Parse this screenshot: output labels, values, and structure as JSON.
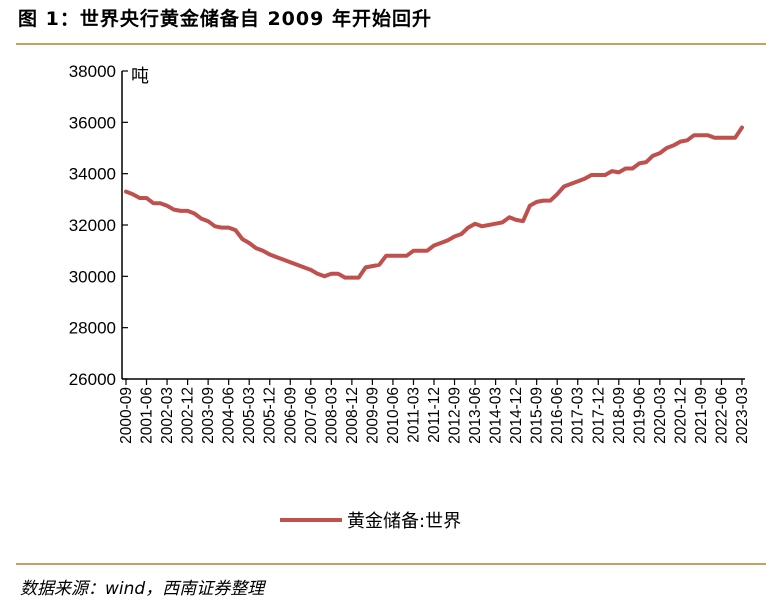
{
  "header": {
    "title": "图 1：世界央行黄金储备自 2009 年开始回升"
  },
  "footer": {
    "source": "数据来源：wind，西南证券整理"
  },
  "chart_data": {
    "type": "line",
    "unit_label": "吨",
    "ylim": [
      26000,
      38000
    ],
    "y_ticks": [
      26000,
      28000,
      30000,
      32000,
      34000,
      36000,
      38000
    ],
    "y_tick_labels": [
      "26000",
      "28000",
      "30000",
      "32000",
      "34000",
      "36000",
      "38000"
    ],
    "x_tick_labels": [
      "2000-09",
      "2001-06",
      "2002-03",
      "2002-12",
      "2003-09",
      "2004-06",
      "2005-03",
      "2005-12",
      "2006-09",
      "2007-06",
      "2008-03",
      "2008-12",
      "2009-09",
      "2010-06",
      "2011-03",
      "2011-12",
      "2012-09",
      "2013-06",
      "2014-03",
      "2014-12",
      "2015-09",
      "2016-06",
      "2017-03",
      "2017-12",
      "2018-09",
      "2019-06",
      "2020-03",
      "2020-12",
      "2021-09",
      "2022-06",
      "2023-03"
    ],
    "legend_position": "bottom",
    "series": [
      {
        "name": "黄金储备:世界",
        "color": "#c0504d",
        "x": [
          "2000-09",
          "2000-12",
          "2001-03",
          "2001-06",
          "2001-09",
          "2001-12",
          "2002-03",
          "2002-06",
          "2002-09",
          "2002-12",
          "2003-03",
          "2003-06",
          "2003-09",
          "2003-12",
          "2004-03",
          "2004-06",
          "2004-09",
          "2004-12",
          "2005-03",
          "2005-06",
          "2005-09",
          "2005-12",
          "2006-03",
          "2006-06",
          "2006-09",
          "2006-12",
          "2007-03",
          "2007-06",
          "2007-09",
          "2007-12",
          "2008-03",
          "2008-06",
          "2008-09",
          "2008-12",
          "2009-03",
          "2009-06",
          "2009-09",
          "2009-12",
          "2010-03",
          "2010-06",
          "2010-09",
          "2010-12",
          "2011-03",
          "2011-06",
          "2011-09",
          "2011-12",
          "2012-03",
          "2012-06",
          "2012-09",
          "2012-12",
          "2013-03",
          "2013-06",
          "2013-09",
          "2013-12",
          "2014-03",
          "2014-06",
          "2014-09",
          "2014-12",
          "2015-03",
          "2015-06",
          "2015-09",
          "2015-12",
          "2016-03",
          "2016-06",
          "2016-09",
          "2016-12",
          "2017-03",
          "2017-06",
          "2017-09",
          "2017-12",
          "2018-03",
          "2018-06",
          "2018-09",
          "2018-12",
          "2019-03",
          "2019-06",
          "2019-09",
          "2019-12",
          "2020-03",
          "2020-06",
          "2020-09",
          "2020-12",
          "2021-03",
          "2021-06",
          "2021-09",
          "2021-12",
          "2022-03",
          "2022-06",
          "2022-09",
          "2022-12",
          "2023-03"
        ],
        "values": [
          33300,
          33200,
          33050,
          33050,
          32850,
          32850,
          32750,
          32600,
          32550,
          32550,
          32450,
          32250,
          32150,
          31950,
          31900,
          31900,
          31800,
          31450,
          31300,
          31100,
          31000,
          30850,
          30750,
          30650,
          30550,
          30450,
          30350,
          30250,
          30100,
          30000,
          30100,
          30100,
          29950,
          29950,
          29950,
          30350,
          30400,
          30450,
          30800,
          30800,
          30800,
          30800,
          31000,
          31000,
          31000,
          31200,
          31300,
          31400,
          31550,
          31650,
          31900,
          32050,
          31950,
          32000,
          32050,
          32100,
          32300,
          32200,
          32150,
          32750,
          32900,
          32950,
          32950,
          33200,
          33500,
          33600,
          33700,
          33800,
          33950,
          33950,
          33950,
          34100,
          34050,
          34200,
          34200,
          34400,
          34450,
          34700,
          34800,
          35000,
          35100,
          35250,
          35300,
          35500,
          35500,
          35500,
          35400,
          35400,
          35400,
          35400,
          35800
        ]
      }
    ]
  }
}
